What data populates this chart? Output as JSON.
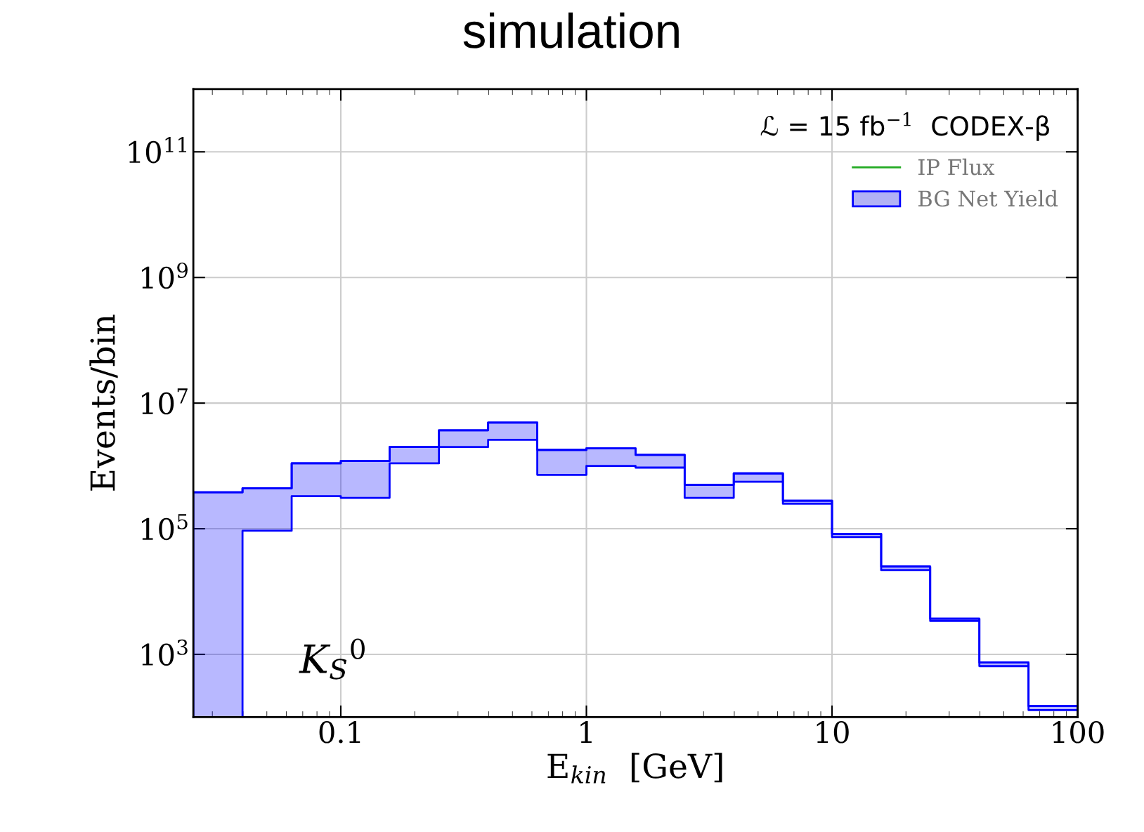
{
  "chart_data": {
    "type": "step",
    "title": "simulation",
    "xlabel": "E$_{kin}$  [GeV]",
    "ylabel": "Events/bin",
    "annotations": [
      "ℒ = 15 fb$^{−1}$  CODEX-β",
      "K$_{S}$$^{0}$"
    ],
    "x": [
      0.0251,
      0.0398,
      0.0631,
      0.1,
      0.158,
      0.251,
      0.398,
      0.631,
      1,
      1.585,
      2.512,
      3.98,
      6.31,
      10,
      15.85,
      25.1,
      39.8,
      63.1,
      100
    ],
    "series": [
      {
        "name": "IP Flux",
        "type": "line",
        "color": "#22aa22",
        "values": [
          null,
          null,
          null,
          null,
          null,
          null,
          null,
          null,
          null,
          null,
          null,
          null,
          null,
          null,
          null,
          null,
          null,
          null,
          null
        ]
      },
      {
        "name": "BG Net Yield",
        "color": "#0000ff",
        "values": [
          380000,
          440000,
          1100000,
          1200000,
          2000000,
          3700000,
          4900000,
          1800000,
          1900000,
          1500000,
          500000,
          760000,
          280000,
          83000,
          25000,
          3700,
          740,
          150,
          150
        ],
        "lower": [
          100,
          93000,
          330000,
          310000,
          1100000,
          2000000,
          2600000,
          720000,
          1000000,
          940000,
          310000,
          560000,
          250000,
          74000,
          22000,
          3400,
          650,
          130,
          130
        ],
        "upper": [
          380000,
          440000,
          1100000,
          1200000,
          2000000,
          3700000,
          4900000,
          1800000,
          1900000,
          1500000,
          500000,
          760000,
          280000,
          83000,
          25000,
          3700,
          740,
          150,
          150
        ]
      }
    ],
    "log": "xy",
    "xlim": [
      0.0251,
      100
    ],
    "ylim": [
      100,
      1000000000000
    ],
    "xticks": [
      0.1,
      1,
      10,
      100
    ],
    "yticks": [
      {
        "value": 1000,
        "label": "10$^{3}$"
      },
      {
        "value": 100000,
        "label": "10$^{5}$"
      },
      {
        "value": 10000000,
        "label": "10$^{7}$"
      },
      {
        "value": 1000000000,
        "label": "10$^{9}$"
      },
      {
        "value": 100000000000,
        "label": "10$^{11}$"
      }
    ],
    "grid": true,
    "legend": "top right"
  }
}
